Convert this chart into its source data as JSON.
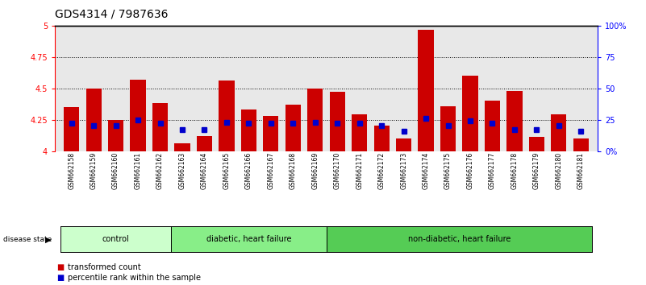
{
  "title": "GDS4314 / 7987636",
  "samples": [
    "GSM662158",
    "GSM662159",
    "GSM662160",
    "GSM662161",
    "GSM662162",
    "GSM662163",
    "GSM662164",
    "GSM662165",
    "GSM662166",
    "GSM662167",
    "GSM662168",
    "GSM662169",
    "GSM662170",
    "GSM662171",
    "GSM662172",
    "GSM662173",
    "GSM662174",
    "GSM662175",
    "GSM662176",
    "GSM662177",
    "GSM662178",
    "GSM662179",
    "GSM662180",
    "GSM662181"
  ],
  "bar_values": [
    4.35,
    4.5,
    4.25,
    4.57,
    4.38,
    4.06,
    4.12,
    4.56,
    4.33,
    4.28,
    4.37,
    4.5,
    4.47,
    4.29,
    4.2,
    4.1,
    4.97,
    4.36,
    4.6,
    4.4,
    4.48,
    4.11,
    4.29,
    4.1
  ],
  "percentile_values": [
    4.22,
    4.2,
    4.2,
    4.25,
    4.22,
    4.17,
    4.17,
    4.23,
    4.22,
    4.22,
    4.22,
    4.23,
    4.22,
    4.22,
    4.2,
    4.16,
    4.26,
    4.2,
    4.24,
    4.22,
    4.17,
    4.17,
    4.2,
    4.16
  ],
  "ylim": [
    4.0,
    5.0
  ],
  "yticks": [
    4.0,
    4.25,
    4.5,
    4.75,
    5.0
  ],
  "ytick_labels": [
    "4",
    "4.25",
    "4.5",
    "4.75",
    "5"
  ],
  "bar_color": "#cc0000",
  "percentile_color": "#0000cc",
  "bar_width": 0.7,
  "groups": [
    {
      "label": "control",
      "start": 0,
      "end": 4,
      "color": "#ccffcc"
    },
    {
      "label": "diabetic, heart failure",
      "start": 5,
      "end": 11,
      "color": "#88ee88"
    },
    {
      "label": "non-diabetic, heart failure",
      "start": 12,
      "end": 23,
      "color": "#55cc55"
    }
  ],
  "disease_state_label": "disease state",
  "legend_items": [
    {
      "label": "transformed count",
      "color": "#cc0000"
    },
    {
      "label": "percentile rank within the sample",
      "color": "#0000cc"
    }
  ],
  "plot_bg_color": "#e8e8e8",
  "title_fontsize": 10,
  "tick_fontsize": 7
}
